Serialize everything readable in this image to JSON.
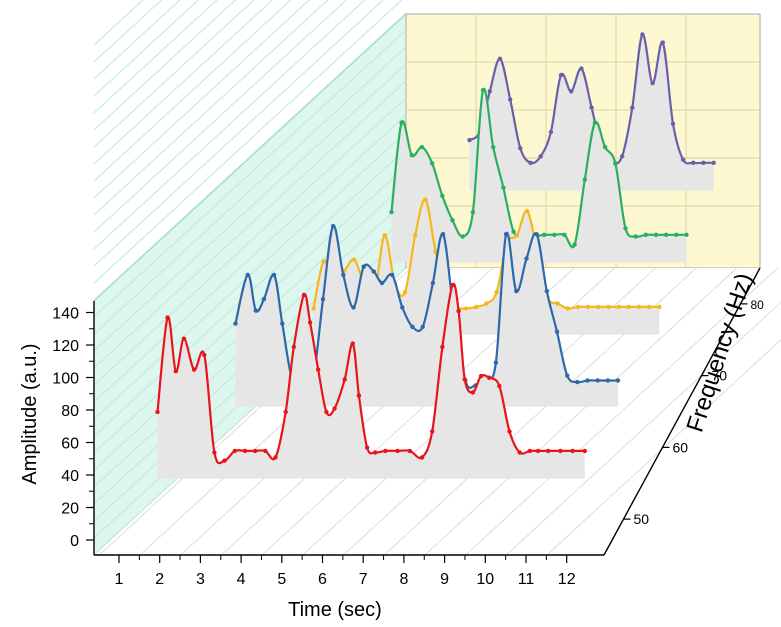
{
  "chart_data": {
    "type": "line",
    "style": "3d-waterfall",
    "title": "",
    "xlabel": "Time (sec)",
    "ylabel": "Amplitude (a.u.)",
    "zlabel": "Frequency (Hz)",
    "xlim": [
      0.5,
      12.5
    ],
    "ylim": [
      -10,
      150
    ],
    "zlim": [
      45,
      85
    ],
    "xticks": [
      "1",
      "2",
      "3",
      "4",
      "5",
      "6",
      "7",
      "8",
      "9",
      "10",
      "11",
      "12"
    ],
    "yticks": [
      "0",
      "20",
      "40",
      "60",
      "80",
      "100",
      "120",
      "140"
    ],
    "zticks": [
      "50",
      "60",
      "70",
      "80"
    ],
    "grid": true,
    "fill_under_curves": true,
    "fill_color": "#e6e6e6",
    "wall_colors": {
      "left": "#ddf6ee",
      "back": "#fdf8d0"
    },
    "series": [
      {
        "frequency": 50,
        "color": "#e8141b",
        "x": [
          1.8,
          2.05,
          2.25,
          2.45,
          2.7,
          2.95,
          3.2,
          3.45,
          3.7,
          3.95,
          4.2,
          4.45,
          4.7,
          4.95,
          5.15,
          5.4,
          5.55,
          5.75,
          5.95,
          6.15,
          6.4,
          6.6,
          6.75,
          6.95,
          7.15,
          7.4,
          7.7,
          8.0,
          8.3,
          8.55,
          8.8,
          9.05,
          9.2,
          9.35,
          9.55,
          9.75,
          9.95,
          10.2,
          10.45,
          10.7,
          10.95,
          11.15,
          11.4,
          11.7,
          12.0,
          12.3
        ],
        "y": [
          70,
          128,
          95,
          115,
          96,
          105,
          45,
          40,
          46,
          46,
          46,
          46,
          42,
          70,
          110,
          142,
          125,
          96,
          70,
          72,
          90,
          112,
          80,
          48,
          45,
          46,
          46,
          46,
          42,
          58,
          110,
          148,
          132,
          90,
          82,
          92,
          91,
          86,
          58,
          45,
          46,
          46,
          46,
          46,
          46,
          46
        ]
      },
      {
        "frequency": 60,
        "color": "#2c68aa",
        "x": [
          1.8,
          2.1,
          2.3,
          2.5,
          2.75,
          2.95,
          3.2,
          3.45,
          3.7,
          3.95,
          4.2,
          4.45,
          4.7,
          4.95,
          5.2,
          5.4,
          5.65,
          5.9,
          6.15,
          6.4,
          6.65,
          6.9,
          7.15,
          7.45,
          7.7,
          7.95,
          8.2,
          8.45,
          8.7,
          8.95,
          9.2,
          9.45,
          9.7,
          9.95,
          10.2,
          10.45,
          10.7,
          10.95,
          11.2
        ],
        "y": [
          80,
          110,
          88,
          95,
          110,
          80,
          45,
          44,
          45,
          95,
          140,
          110,
          90,
          115,
          112,
          105,
          110,
          90,
          78,
          78,
          105,
          135,
          90,
          45,
          42,
          45,
          56,
          135,
          100,
          120,
          135,
          100,
          75,
          48,
          44,
          45,
          45,
          45,
          45
        ]
      },
      {
        "frequency": 70,
        "color": "#f5b81c",
        "x": [
          1.8,
          2.05,
          2.3,
          2.55,
          2.8,
          3.05,
          3.3,
          3.55,
          3.8,
          4.05,
          4.3,
          4.55,
          4.8,
          5.05,
          5.3,
          5.55,
          5.8,
          6.05,
          6.3,
          6.55,
          6.8,
          7.05,
          7.3,
          7.55,
          7.8,
          8.05,
          8.3,
          8.55,
          8.8,
          9.05,
          9.3,
          9.55,
          9.8,
          10.05,
          10.3
        ],
        "y": [
          45,
          74,
          64,
          68,
          75,
          60,
          55,
          90,
          60,
          55,
          90,
          112,
          80,
          55,
          46,
          45,
          46,
          48,
          55,
          85,
          90,
          105,
          80,
          52,
          48,
          45,
          46,
          46,
          46,
          46,
          46,
          46,
          46,
          46,
          46
        ]
      },
      {
        "frequency": 80,
        "color": "#2aaf62",
        "x": [
          1.8,
          2.05,
          2.3,
          2.55,
          2.8,
          3.05,
          3.3,
          3.55,
          3.8,
          4.05,
          4.3,
          4.55,
          4.8,
          5.05,
          5.3,
          5.55,
          5.8,
          6.05,
          6.3,
          6.55,
          6.8,
          7.05,
          7.3,
          7.55,
          7.8,
          8.05,
          8.3,
          8.55,
          8.8,
          9.05
        ],
        "y": [
          60,
          115,
          95,
          100,
          90,
          70,
          55,
          45,
          60,
          135,
          100,
          75,
          48,
          46,
          45,
          46,
          46,
          46,
          40,
          80,
          115,
          100,
          90,
          50,
          45,
          46,
          46,
          46,
          46,
          46
        ]
      },
      {
        "frequency": 90,
        "color": "#6a5fa8",
        "x": [
          1.8,
          2.05,
          2.3,
          2.55,
          2.8,
          3.05,
          3.3,
          3.55,
          3.8,
          4.05,
          4.3,
          4.55,
          4.8,
          5.05,
          5.3,
          5.55,
          5.8,
          6.05,
          6.3,
          6.55,
          6.8,
          7.05,
          7.3,
          7.55,
          7.8
        ],
        "y": [
          60,
          65,
          90,
          110,
          85,
          55,
          46,
          50,
          65,
          100,
          90,
          104,
          80,
          55,
          46,
          50,
          80,
          125,
          95,
          120,
          70,
          48,
          46,
          46,
          46
        ]
      }
    ]
  }
}
